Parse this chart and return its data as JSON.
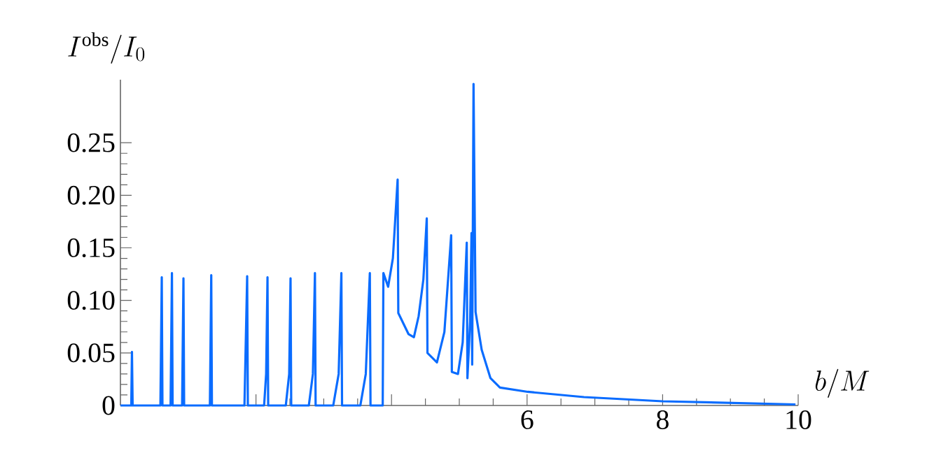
{
  "chart_data": {
    "type": "line",
    "xlabel": "b/M",
    "ylabel": "I^{\\mathrm{obs}}/I_0",
    "xlim": [
      0,
      10
    ],
    "ylim": [
      0,
      0.31
    ],
    "xticks": [
      {
        "value": 2,
        "label": null
      },
      {
        "value": 4,
        "label": null
      },
      6,
      8,
      10
    ],
    "yticks": [
      0,
      0.05,
      {
        "value": 0.1,
        "label": "0.10"
      },
      0.15,
      {
        "value": 0.2,
        "label": "0.20"
      },
      0.25
    ],
    "grid": false,
    "marker": "none",
    "line_style": "solid",
    "series": [
      {
        "color": "#0a6cff",
        "x": [
          0,
          0.16,
          0.17,
          0.18,
          0.59,
          0.61,
          0.62,
          0.74,
          0.76,
          0.77,
          0.91,
          0.93,
          0.94,
          1.32,
          1.34,
          1.35,
          1.83,
          1.87,
          1.88,
          2.12,
          2.15,
          2.17,
          2.18,
          2.44,
          2.49,
          2.51,
          2.52,
          2.78,
          2.84,
          2.87,
          2.88,
          3.14,
          3.22,
          3.26,
          3.27,
          3.54,
          3.62,
          3.68,
          3.69,
          3.87,
          3.88,
          3.95,
          4.02,
          4.09,
          4.1,
          4.25,
          4.33,
          4.4,
          4.47,
          4.52,
          4.53,
          4.67,
          4.78,
          4.88,
          4.89,
          4.98,
          5.05,
          5.11,
          5.12,
          5.16,
          5.18,
          5.19,
          5.21,
          5.24,
          5.33,
          5.46,
          5.6,
          6.01,
          6.84,
          8.0,
          9.96
        ],
        "values": [
          0,
          0,
          0.051,
          0,
          0,
          0.122,
          0,
          0,
          0.126,
          0,
          0,
          0.121,
          0,
          0,
          0.124,
          0,
          0,
          0.123,
          0,
          0,
          0.03,
          0.122,
          0,
          0,
          0.03,
          0.121,
          0,
          0,
          0.03,
          0.126,
          0,
          0,
          0.03,
          0.126,
          0,
          0,
          0.03,
          0.126,
          0,
          0,
          0.126,
          0.113,
          0.14,
          0.215,
          0.088,
          0.068,
          0.065,
          0.085,
          0.12,
          0.178,
          0.05,
          0.041,
          0.07,
          0.162,
          0.032,
          0.03,
          0.06,
          0.155,
          0.026,
          0.08,
          0.164,
          0.039,
          0.306,
          0.089,
          0.053,
          0.026,
          0.017,
          0.013,
          0.008,
          0.004,
          0.001
        ]
      }
    ]
  }
}
